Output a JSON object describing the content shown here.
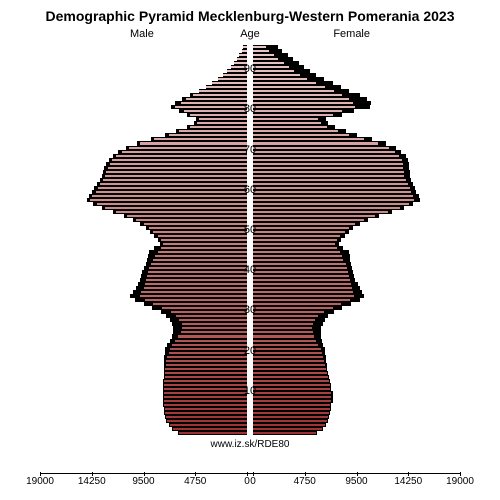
{
  "title": "Demographic Pyramid Mecklenburg-Western Pomerania 2023",
  "title_fontsize": 14,
  "labels": {
    "male": "Male",
    "age": "Age",
    "female": "Female"
  },
  "label_fontsize": 11,
  "footer": "www.iz.sk/RDE80",
  "footer_fontsize": 10,
  "colors": {
    "background": "#ffffff",
    "silhouette": "#000000",
    "axis": "#000000",
    "text": "#000000"
  },
  "gradient": {
    "top_color": "#e8c8c8",
    "bottom_color": "#a03030"
  },
  "chart": {
    "type": "population-pyramid",
    "x_max": 19000,
    "center_gap": 6,
    "age_min": 0,
    "age_max": 96,
    "age_ticks_start": 10,
    "age_ticks_step": 10,
    "age_ticks_end": 90,
    "x_ticks": [
      19000,
      14250,
      9500,
      4750,
      0,
      0,
      4750,
      9500,
      14250,
      19000
    ],
    "bar_outline": "#000000",
    "data": [
      {
        "age": 96,
        "male": 400,
        "male_shadow": 400,
        "female": 1200,
        "female_shadow": 2300
      },
      {
        "age": 95,
        "male": 500,
        "male_shadow": 500,
        "female": 1500,
        "female_shadow": 2700
      },
      {
        "age": 94,
        "male": 700,
        "male_shadow": 700,
        "female": 1900,
        "female_shadow": 3200
      },
      {
        "age": 93,
        "male": 900,
        "male_shadow": 900,
        "female": 2300,
        "female_shadow": 3700
      },
      {
        "age": 92,
        "male": 1200,
        "male_shadow": 1200,
        "female": 2800,
        "female_shadow": 4200
      },
      {
        "age": 91,
        "male": 1500,
        "male_shadow": 1500,
        "female": 3300,
        "female_shadow": 4700
      },
      {
        "age": 90,
        "male": 1800,
        "male_shadow": 1800,
        "female": 3800,
        "female_shadow": 5200
      },
      {
        "age": 89,
        "male": 2200,
        "male_shadow": 2200,
        "female": 4300,
        "female_shadow": 5800
      },
      {
        "age": 88,
        "male": 2700,
        "male_shadow": 2700,
        "female": 5000,
        "female_shadow": 6500
      },
      {
        "age": 87,
        "male": 3200,
        "male_shadow": 3200,
        "female": 5800,
        "female_shadow": 7300
      },
      {
        "age": 86,
        "male": 3800,
        "male_shadow": 3800,
        "female": 6600,
        "female_shadow": 8100
      },
      {
        "age": 85,
        "male": 4400,
        "male_shadow": 4400,
        "female": 7400,
        "female_shadow": 8800
      },
      {
        "age": 84,
        "male": 5000,
        "male_shadow": 5200,
        "female": 8200,
        "female_shadow": 9800
      },
      {
        "age": 83,
        "male": 5600,
        "male_shadow": 6000,
        "female": 8800,
        "female_shadow": 10500
      },
      {
        "age": 82,
        "male": 6100,
        "male_shadow": 6600,
        "female": 9200,
        "female_shadow": 10800
      },
      {
        "age": 81,
        "male": 6600,
        "male_shadow": 7000,
        "female": 9400,
        "female_shadow": 10700
      },
      {
        "age": 80,
        "male": 5800,
        "male_shadow": 6200,
        "female": 8200,
        "female_shadow": 9300
      },
      {
        "age": 79,
        "male": 5200,
        "male_shadow": 5500,
        "female": 7300,
        "female_shadow": 8200
      },
      {
        "age": 78,
        "male": 4400,
        "male_shadow": 4700,
        "female": 6000,
        "female_shadow": 6700
      },
      {
        "age": 77,
        "male": 4600,
        "male_shadow": 4900,
        "female": 6200,
        "female_shadow": 6900
      },
      {
        "age": 76,
        "male": 5200,
        "male_shadow": 5500,
        "female": 6800,
        "female_shadow": 7500
      },
      {
        "age": 75,
        "male": 6200,
        "male_shadow": 6500,
        "female": 7800,
        "female_shadow": 8500
      },
      {
        "age": 74,
        "male": 7200,
        "male_shadow": 7500,
        "female": 8800,
        "female_shadow": 9500
      },
      {
        "age": 73,
        "male": 8500,
        "male_shadow": 8800,
        "female": 10200,
        "female_shadow": 10900
      },
      {
        "age": 72,
        "male": 9800,
        "male_shadow": 10100,
        "female": 11500,
        "female_shadow": 12200
      },
      {
        "age": 71,
        "male": 10800,
        "male_shadow": 11100,
        "female": 12500,
        "female_shadow": 13100
      },
      {
        "age": 70,
        "male": 11500,
        "male_shadow": 11800,
        "female": 13000,
        "female_shadow": 13600
      },
      {
        "age": 69,
        "male": 12000,
        "male_shadow": 12300,
        "female": 13400,
        "female_shadow": 14000
      },
      {
        "age": 68,
        "male": 12400,
        "male_shadow": 12700,
        "female": 13700,
        "female_shadow": 14200
      },
      {
        "age": 67,
        "male": 12600,
        "male_shadow": 12900,
        "female": 13800,
        "female_shadow": 14300
      },
      {
        "age": 66,
        "male": 12800,
        "male_shadow": 13100,
        "female": 13800,
        "female_shadow": 14300
      },
      {
        "age": 65,
        "male": 12900,
        "male_shadow": 13200,
        "female": 13900,
        "female_shadow": 14400
      },
      {
        "age": 64,
        "male": 13000,
        "male_shadow": 13300,
        "female": 13900,
        "female_shadow": 14400
      },
      {
        "age": 63,
        "male": 13200,
        "male_shadow": 13500,
        "female": 14000,
        "female_shadow": 14500
      },
      {
        "age": 62,
        "male": 13500,
        "male_shadow": 13800,
        "female": 14200,
        "female_shadow": 14700
      },
      {
        "age": 61,
        "male": 13700,
        "male_shadow": 14000,
        "female": 14400,
        "female_shadow": 14900
      },
      {
        "age": 60,
        "male": 13900,
        "male_shadow": 14200,
        "female": 14500,
        "female_shadow": 15000
      },
      {
        "age": 59,
        "male": 14200,
        "male_shadow": 14500,
        "female": 14700,
        "female_shadow": 15200
      },
      {
        "age": 58,
        "male": 14400,
        "male_shadow": 14700,
        "female": 14800,
        "female_shadow": 15300
      },
      {
        "age": 57,
        "male": 13800,
        "male_shadow": 14100,
        "female": 14300,
        "female_shadow": 14700
      },
      {
        "age": 56,
        "male": 13000,
        "male_shadow": 13300,
        "female": 13500,
        "female_shadow": 13900
      },
      {
        "age": 55,
        "male": 12000,
        "male_shadow": 12300,
        "female": 12400,
        "female_shadow": 12800
      },
      {
        "age": 54,
        "male": 11000,
        "male_shadow": 11300,
        "female": 11200,
        "female_shadow": 11600
      },
      {
        "age": 53,
        "male": 10200,
        "male_shadow": 10500,
        "female": 10200,
        "female_shadow": 10600
      },
      {
        "age": 52,
        "male": 9500,
        "male_shadow": 9800,
        "female": 9400,
        "female_shadow": 9800
      },
      {
        "age": 51,
        "male": 9000,
        "male_shadow": 9300,
        "female": 8800,
        "female_shadow": 9200
      },
      {
        "age": 50,
        "male": 8600,
        "male_shadow": 8900,
        "female": 8400,
        "female_shadow": 8800
      },
      {
        "age": 49,
        "male": 8200,
        "male_shadow": 8500,
        "female": 8000,
        "female_shadow": 8400
      },
      {
        "age": 48,
        "male": 7900,
        "male_shadow": 8200,
        "female": 7700,
        "female_shadow": 8100
      },
      {
        "age": 47,
        "male": 7700,
        "male_shadow": 8000,
        "female": 7500,
        "female_shadow": 7900
      },
      {
        "age": 46,
        "male": 7900,
        "male_shadow": 8500,
        "female": 7700,
        "female_shadow": 8300
      },
      {
        "age": 45,
        "male": 8200,
        "male_shadow": 9000,
        "female": 8000,
        "female_shadow": 8800
      },
      {
        "age": 44,
        "male": 8400,
        "male_shadow": 9100,
        "female": 8200,
        "female_shadow": 8900
      },
      {
        "age": 43,
        "male": 8600,
        "male_shadow": 9200,
        "female": 8300,
        "female_shadow": 8900
      },
      {
        "age": 42,
        "male": 8800,
        "male_shadow": 9300,
        "female": 8500,
        "female_shadow": 9000
      },
      {
        "age": 41,
        "male": 9000,
        "male_shadow": 9500,
        "female": 8600,
        "female_shadow": 9100
      },
      {
        "age": 40,
        "male": 9100,
        "male_shadow": 9600,
        "female": 8700,
        "female_shadow": 9200
      },
      {
        "age": 39,
        "male": 9200,
        "male_shadow": 9700,
        "female": 8800,
        "female_shadow": 9300
      },
      {
        "age": 38,
        "male": 9300,
        "male_shadow": 9800,
        "female": 8900,
        "female_shadow": 9400
      },
      {
        "age": 37,
        "male": 9400,
        "male_shadow": 10000,
        "female": 9000,
        "female_shadow": 9600
      },
      {
        "age": 36,
        "male": 9500,
        "male_shadow": 10200,
        "female": 9100,
        "female_shadow": 9800
      },
      {
        "age": 35,
        "male": 9700,
        "male_shadow": 10500,
        "female": 9200,
        "female_shadow": 10000
      },
      {
        "age": 34,
        "male": 9800,
        "male_shadow": 10700,
        "female": 9300,
        "female_shadow": 10200
      },
      {
        "age": 33,
        "male": 9400,
        "male_shadow": 10300,
        "female": 8900,
        "female_shadow": 9800
      },
      {
        "age": 32,
        "male": 8600,
        "male_shadow": 9500,
        "female": 8100,
        "female_shadow": 9000
      },
      {
        "age": 31,
        "male": 7800,
        "male_shadow": 8700,
        "female": 7300,
        "female_shadow": 8200
      },
      {
        "age": 30,
        "male": 7000,
        "male_shadow": 7900,
        "female": 6500,
        "female_shadow": 7400
      },
      {
        "age": 29,
        "male": 6500,
        "male_shadow": 7400,
        "female": 6000,
        "female_shadow": 6900
      },
      {
        "age": 28,
        "male": 6200,
        "male_shadow": 7100,
        "female": 5700,
        "female_shadow": 6600
      },
      {
        "age": 27,
        "male": 6000,
        "male_shadow": 6900,
        "female": 5500,
        "female_shadow": 6400
      },
      {
        "age": 26,
        "male": 6000,
        "male_shadow": 6800,
        "female": 5400,
        "female_shadow": 6200
      },
      {
        "age": 25,
        "male": 6100,
        "male_shadow": 6800,
        "female": 5500,
        "female_shadow": 6200
      },
      {
        "age": 24,
        "male": 6300,
        "male_shadow": 6900,
        "female": 5600,
        "female_shadow": 6200
      },
      {
        "age": 23,
        "male": 6600,
        "male_shadow": 7100,
        "female": 5800,
        "female_shadow": 6300
      },
      {
        "age": 22,
        "male": 6900,
        "male_shadow": 7300,
        "female": 6000,
        "female_shadow": 6400
      },
      {
        "age": 21,
        "male": 7100,
        "male_shadow": 7500,
        "female": 6200,
        "female_shadow": 6600
      },
      {
        "age": 20,
        "male": 7200,
        "male_shadow": 7500,
        "female": 6300,
        "female_shadow": 6600
      },
      {
        "age": 19,
        "male": 7300,
        "male_shadow": 7600,
        "female": 6400,
        "female_shadow": 6700
      },
      {
        "age": 18,
        "male": 7400,
        "male_shadow": 7600,
        "female": 6500,
        "female_shadow": 6700
      },
      {
        "age": 17,
        "male": 7400,
        "male_shadow": 7600,
        "female": 6600,
        "female_shadow": 6800
      },
      {
        "age": 16,
        "male": 7500,
        "male_shadow": 7600,
        "female": 6700,
        "female_shadow": 6800
      },
      {
        "age": 15,
        "male": 7500,
        "male_shadow": 7600,
        "female": 6800,
        "female_shadow": 6900
      },
      {
        "age": 14,
        "male": 7500,
        "male_shadow": 7600,
        "female": 6900,
        "female_shadow": 7000
      },
      {
        "age": 13,
        "male": 7600,
        "male_shadow": 7700,
        "female": 7000,
        "female_shadow": 7100
      },
      {
        "age": 12,
        "male": 7600,
        "male_shadow": 7700,
        "female": 7100,
        "female_shadow": 7200
      },
      {
        "age": 11,
        "male": 7600,
        "male_shadow": 7700,
        "female": 7100,
        "female_shadow": 7200
      },
      {
        "age": 10,
        "male": 7600,
        "male_shadow": 7700,
        "female": 7200,
        "female_shadow": 7300
      },
      {
        "age": 9,
        "male": 7600,
        "male_shadow": 7700,
        "female": 7200,
        "female_shadow": 7300
      },
      {
        "age": 8,
        "male": 7600,
        "male_shadow": 7700,
        "female": 7200,
        "female_shadow": 7300
      },
      {
        "age": 7,
        "male": 7600,
        "male_shadow": 7700,
        "female": 7100,
        "female_shadow": 7200
      },
      {
        "age": 6,
        "male": 7500,
        "male_shadow": 7600,
        "female": 7100,
        "female_shadow": 7200
      },
      {
        "age": 5,
        "male": 7500,
        "male_shadow": 7600,
        "female": 7000,
        "female_shadow": 7100
      },
      {
        "age": 4,
        "male": 7400,
        "male_shadow": 7500,
        "female": 6900,
        "female_shadow": 7000
      },
      {
        "age": 3,
        "male": 7300,
        "male_shadow": 7400,
        "female": 6800,
        "female_shadow": 6900
      },
      {
        "age": 2,
        "male": 7100,
        "male_shadow": 7200,
        "female": 6600,
        "female_shadow": 6700
      },
      {
        "age": 1,
        "male": 6800,
        "male_shadow": 6900,
        "female": 6300,
        "female_shadow": 6400
      },
      {
        "age": 0,
        "male": 6200,
        "male_shadow": 6300,
        "female": 5800,
        "female_shadow": 5900
      }
    ]
  }
}
